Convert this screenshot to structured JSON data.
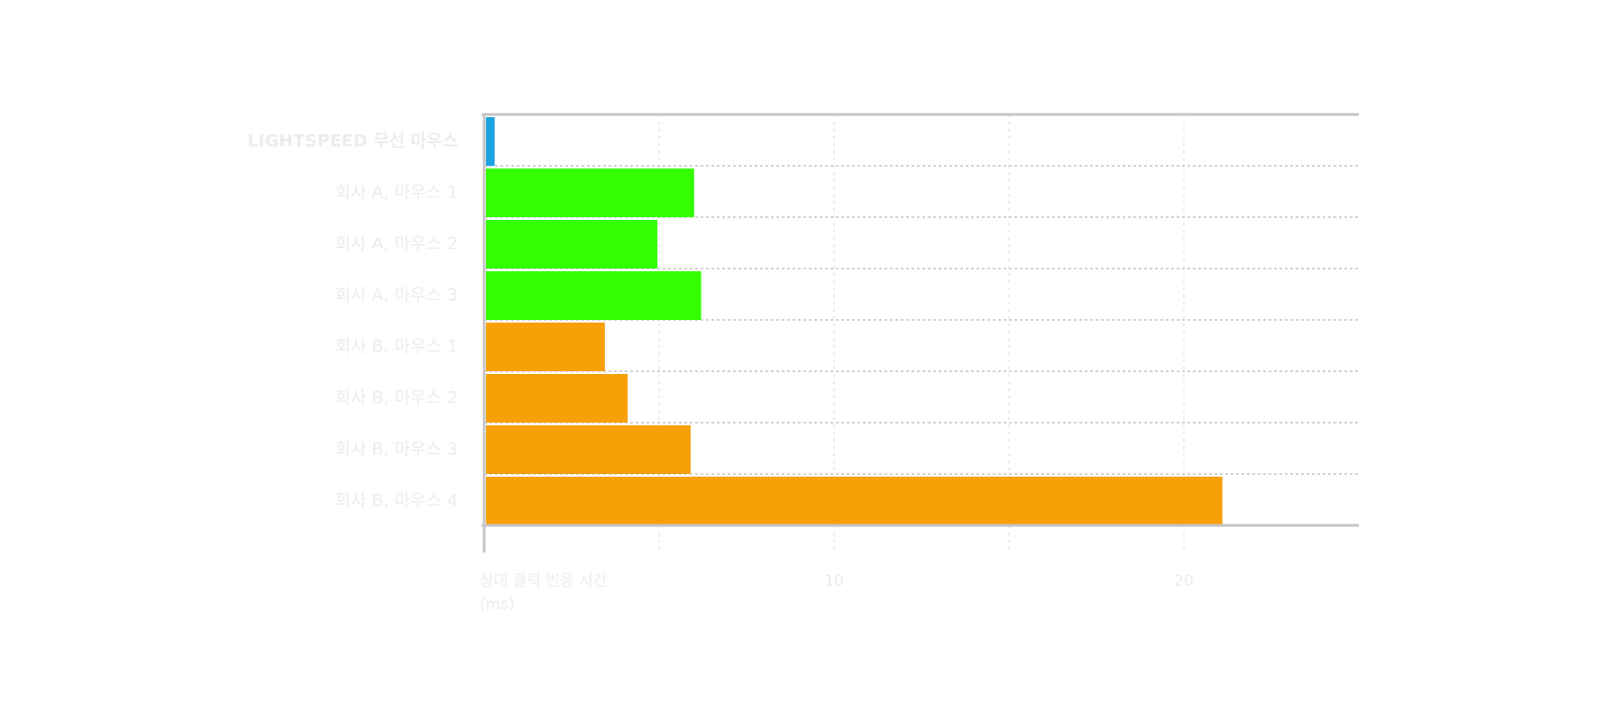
{
  "chart_data": {
    "type": "bar",
    "orientation": "horizontal",
    "categories": [
      "LIGHTSPEED 무선 마우스",
      "회사 A, 마우스 1",
      "회사 A, 마우스 2",
      "회사 A, 마우스 3",
      "회사 B, 마우스 1",
      "회사 B, 마우스 2",
      "회사 B, 마우스 3",
      "회사 B, 마우스 4"
    ],
    "values": [
      0.3,
      6.0,
      4.95,
      6.2,
      3.45,
      4.1,
      5.9,
      21.1
    ],
    "colors": [
      "#1aa3e0",
      "#33ff00",
      "#33ff00",
      "#33ff00",
      "#f7a008",
      "#f7a008",
      "#f7a008",
      "#f7a008"
    ],
    "xlim": [
      0,
      25
    ],
    "ticks": [
      {
        "value": 10,
        "label": "10"
      },
      {
        "value": 20,
        "label": "20"
      }
    ],
    "gridlines_x": [
      5,
      10,
      15,
      20
    ],
    "xlabel_lines": [
      "상대 클릭 반응 시간",
      "(ms)"
    ],
    "grid": true
  }
}
